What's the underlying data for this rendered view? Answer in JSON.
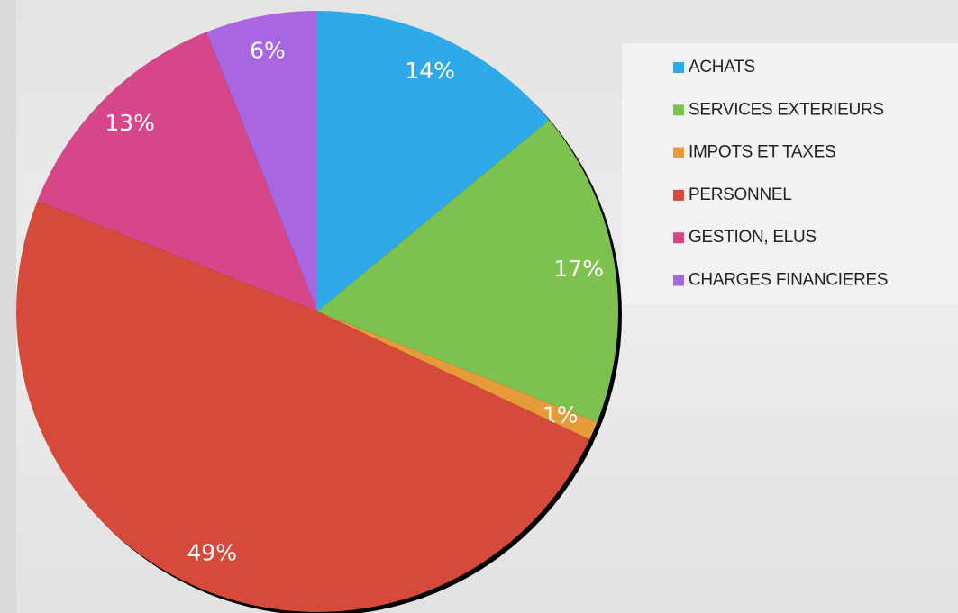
{
  "chart_data": {
    "type": "pie",
    "categories": [
      "ACHATS",
      "SERVICES EXTERIEURS",
      "IMPOTS ET TAXES",
      "PERSONNEL",
      "GESTION, ELUS",
      "CHARGES FINANCIERES"
    ],
    "values": [
      14,
      17,
      1,
      49,
      13,
      6
    ],
    "value_labels": [
      "14%",
      "17%",
      "1%",
      "49%",
      "13%",
      "6%"
    ],
    "colors": [
      "#2eaaea",
      "#7dc24e",
      "#e69a3a",
      "#d64a3b",
      "#d6478a",
      "#a866e0"
    ],
    "legend": "right"
  }
}
